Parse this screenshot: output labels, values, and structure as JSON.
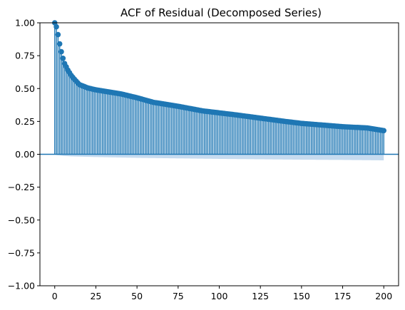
{
  "chart_data": {
    "type": "stem",
    "title": "ACF of Residual (Decomposed Series)",
    "xlabel": "",
    "ylabel": "",
    "xlim": [
      -9,
      209
    ],
    "ylim": [
      -1.0,
      1.0
    ],
    "xticks": [
      0,
      25,
      50,
      75,
      100,
      125,
      150,
      175,
      200
    ],
    "yticks": [
      -1.0,
      -0.75,
      -0.5,
      -0.25,
      0.0,
      0.25,
      0.5,
      0.75,
      1.0
    ],
    "xtick_labels": [
      "0",
      "25",
      "50",
      "75",
      "100",
      "125",
      "150",
      "175",
      "200"
    ],
    "ytick_labels": [
      "−1.00",
      "−0.75",
      "−0.50",
      "−0.25",
      "0.00",
      "0.25",
      "0.50",
      "0.75",
      "1.00"
    ],
    "grid": false,
    "colors": {
      "stem": "#1f77b4",
      "confidence_band": "#c6dbef",
      "zero_line": "#1f77b4"
    },
    "series": [
      {
        "lags": {
          "start": 0,
          "end": 200,
          "step": 1
        },
        "acf_anchors": [
          [
            0,
            1.0
          ],
          [
            1,
            0.97
          ],
          [
            2,
            0.91
          ],
          [
            3,
            0.84
          ],
          [
            4,
            0.78
          ],
          [
            5,
            0.73
          ],
          [
            6,
            0.69
          ],
          [
            8,
            0.64
          ],
          [
            10,
            0.6
          ],
          [
            12,
            0.57
          ],
          [
            15,
            0.53
          ],
          [
            20,
            0.505
          ],
          [
            25,
            0.49
          ],
          [
            30,
            0.48
          ],
          [
            40,
            0.46
          ],
          [
            50,
            0.43
          ],
          [
            60,
            0.395
          ],
          [
            75,
            0.365
          ],
          [
            90,
            0.33
          ],
          [
            100,
            0.315
          ],
          [
            110,
            0.3
          ],
          [
            125,
            0.275
          ],
          [
            140,
            0.25
          ],
          [
            150,
            0.235
          ],
          [
            160,
            0.225
          ],
          [
            175,
            0.21
          ],
          [
            190,
            0.2
          ],
          [
            200,
            0.18
          ]
        ]
      }
    ],
    "confidence_band": {
      "lags": {
        "start": 0,
        "end": 200,
        "step": 1
      },
      "lower_anchors": [
        [
          0,
          0.0
        ],
        [
          1,
          -0.006
        ],
        [
          5,
          -0.012
        ],
        [
          10,
          -0.016
        ],
        [
          25,
          -0.021
        ],
        [
          50,
          -0.027
        ],
        [
          75,
          -0.031
        ],
        [
          100,
          -0.035
        ],
        [
          125,
          -0.038
        ],
        [
          150,
          -0.041
        ],
        [
          175,
          -0.043
        ],
        [
          200,
          -0.046
        ]
      ],
      "upper_anchors": [
        [
          0,
          0.0
        ],
        [
          200,
          0.0
        ]
      ]
    }
  }
}
